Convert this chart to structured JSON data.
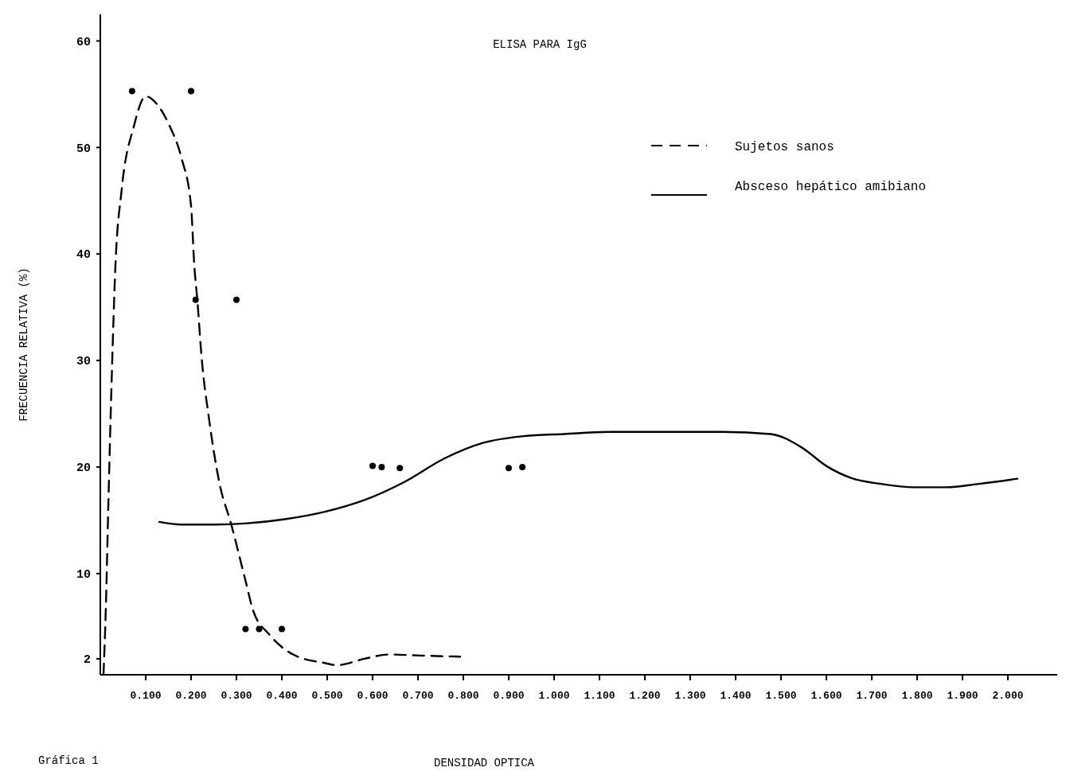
{
  "chart_data": {
    "type": "line",
    "title": "ELISA PARA IgG",
    "xlabel": "DENSIDAD OPTICA",
    "ylabel": "FRECUENCIA RELATIVA (%)",
    "annotations": [
      "Gráfica 1"
    ],
    "xlim": [
      0,
      2.13
    ],
    "ylim": [
      0.5,
      62.5
    ],
    "xticks": [
      {
        "value": 0.1,
        "label": "0.100"
      },
      {
        "value": 0.2,
        "label": "0.200"
      },
      {
        "value": 0.3,
        "label": "0.300"
      },
      {
        "value": 0.4,
        "label": "0.400"
      },
      {
        "value": 0.5,
        "label": "0.500"
      },
      {
        "value": 0.6,
        "label": "0.600"
      },
      {
        "value": 0.7,
        "label": "0.700"
      },
      {
        "value": 0.8,
        "label": "0.800"
      },
      {
        "value": 0.9,
        "label": "0.900"
      },
      {
        "value": 1.0,
        "label": "1.000"
      },
      {
        "value": 1.1,
        "label": "1.100"
      },
      {
        "value": 1.2,
        "label": "1.200"
      },
      {
        "value": 1.3,
        "label": "1.300"
      },
      {
        "value": 1.4,
        "label": "1.400"
      },
      {
        "value": 1.5,
        "label": "1.500"
      },
      {
        "value": 1.6,
        "label": "1.600"
      },
      {
        "value": 1.7,
        "label": "1.700"
      },
      {
        "value": 1.8,
        "label": "1.800"
      },
      {
        "value": 1.9,
        "label": "1.900"
      },
      {
        "value": 2.0,
        "label": "2.000"
      }
    ],
    "yticks": [
      2,
      10,
      20,
      30,
      40,
      50,
      60
    ],
    "grid": false,
    "legend": "top right",
    "series": [
      {
        "name": "Sujetos sanos",
        "color": "#000000",
        "line_style": "dashed",
        "x": [
          0.007,
          0.012,
          0.018,
          0.026,
          0.033,
          0.047,
          0.074,
          0.1,
          0.126,
          0.153,
          0.179,
          0.2,
          0.207,
          0.214,
          0.223,
          0.24,
          0.263,
          0.288,
          0.319,
          0.337,
          0.372,
          0.425,
          0.495,
          0.521,
          0.582,
          0.635,
          0.705,
          0.793
        ],
        "values": [
          0.5,
          6.5,
          17,
          29.6,
          38.6,
          46,
          52,
          54.8,
          54,
          52,
          49,
          44.5,
          39,
          35.6,
          30.4,
          24.4,
          18.4,
          14.7,
          9.5,
          6.5,
          4.3,
          2.4,
          1.6,
          1.4,
          2,
          2.4,
          2.3,
          2.2
        ]
      },
      {
        "name": "Absceso hepático amibiano",
        "color": "#000000",
        "line_style": "solid",
        "x": [
          0.13,
          0.179,
          0.249,
          0.319,
          0.407,
          0.495,
          0.582,
          0.67,
          0.758,
          0.846,
          0.933,
          1.021,
          1.126,
          1.232,
          1.372,
          1.477,
          1.547,
          1.6,
          1.653,
          1.723,
          1.793,
          1.863,
          1.933,
          2.021
        ],
        "values": [
          14.85,
          14.6,
          14.6,
          14.7,
          15.1,
          15.8,
          16.9,
          18.6,
          20.8,
          22.3,
          22.9,
          23.1,
          23.3,
          23.3,
          23.3,
          23.1,
          21.8,
          20.1,
          19,
          18.4,
          18.1,
          18.1,
          18.4,
          18.9
        ]
      },
      {
        "type": "scatter",
        "color": "#000000",
        "x": [
          0.07,
          0.2,
          0.21,
          0.3,
          0.32,
          0.35,
          0.4,
          0.6,
          0.62,
          0.66,
          0.9,
          0.93
        ],
        "values": [
          55.3,
          55.3,
          35.7,
          35.7,
          4.8,
          4.8,
          4.8,
          20.1,
          20,
          19.9,
          19.9,
          20
        ]
      }
    ]
  }
}
